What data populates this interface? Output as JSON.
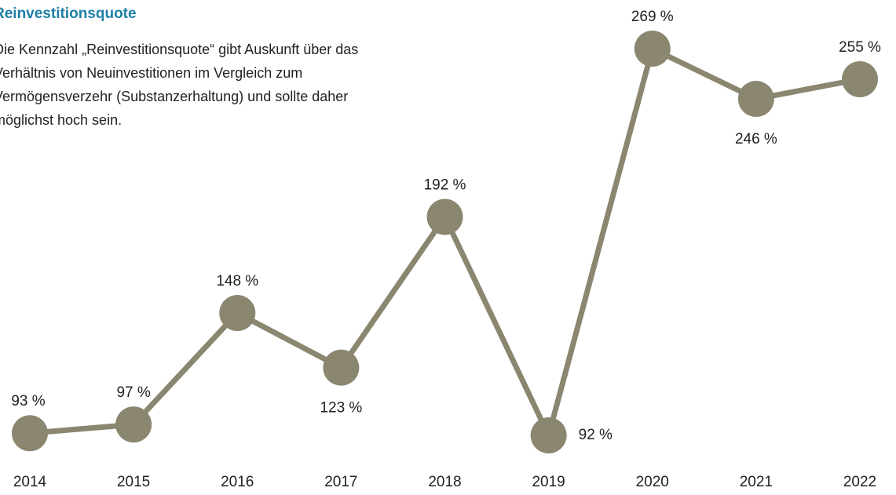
{
  "chart_data": {
    "type": "line",
    "title": "Reinvestitionsquote",
    "subtitle": "Die Kennzahl „Reinvestitionsquote“ gibt Auskunft über das Verhältnis von Neuinvestitionen im Vergleich zum Vermögensverzehr (Substanzerhaltung) und sollte daher möglichst hoch sein.",
    "categories": [
      "2014",
      "2015",
      "2016",
      "2017",
      "2018",
      "2019",
      "2020",
      "2021",
      "2022"
    ],
    "series": [
      {
        "name": "Reinvestitionsquote",
        "color": "#8a8670",
        "values": [
          93,
          97,
          148,
          123,
          192,
          92,
          269,
          246,
          255
        ],
        "value_labels": [
          "93 %",
          "97 %",
          "148 %",
          "123 %",
          "192 %",
          "92 %",
          "269 %",
          "246 %",
          "255 %"
        ]
      }
    ]
  }
}
